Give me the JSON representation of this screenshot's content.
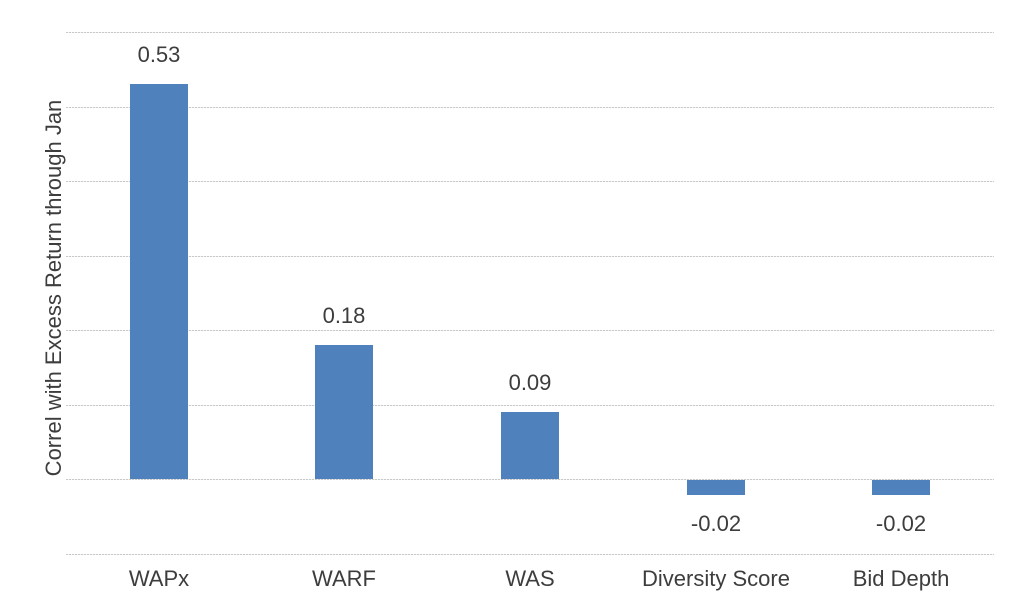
{
  "chart_data": {
    "type": "bar",
    "title": "",
    "categories": [
      "WAPx",
      "WARF",
      "WAS",
      "Diversity Score",
      "Bid Depth"
    ],
    "values": [
      0.53,
      0.18,
      0.09,
      -0.02,
      -0.02
    ],
    "value_labels": [
      "0.53",
      "0.18",
      "0.09",
      "-0.02",
      "-0.02"
    ],
    "xlabel": "",
    "ylabel": "Correl with Excess Return through Jan",
    "ylim": [
      -0.1,
      0.6
    ],
    "gridline_step": 0.1,
    "grid": true,
    "y_tick_labels_visible": false,
    "legend": "none",
    "colors": {
      "bar": "#4f81bd",
      "gridline": "#c9c9c9",
      "text": "#3d3d3d",
      "background": "#ffffff"
    }
  }
}
